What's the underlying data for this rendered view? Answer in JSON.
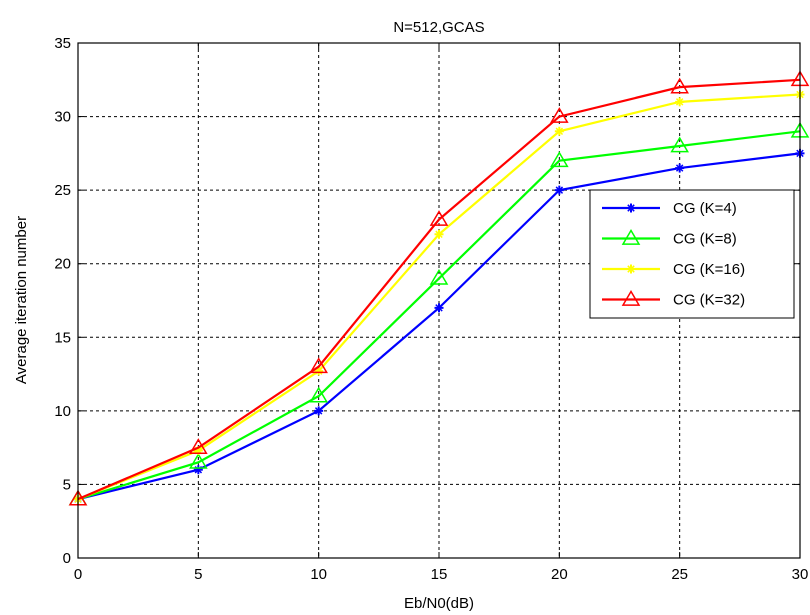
{
  "chart_data": {
    "type": "line",
    "title": "N=512,GCAS",
    "xlabel": "Eb/N0(dB)",
    "ylabel": "Average iteration number",
    "x": [
      0,
      5,
      10,
      15,
      20,
      25,
      30
    ],
    "xlim": [
      0,
      30
    ],
    "ylim": [
      0,
      35
    ],
    "xticks": [
      0,
      5,
      10,
      15,
      20,
      25,
      30
    ],
    "yticks": [
      0,
      5,
      10,
      15,
      20,
      25,
      30,
      35
    ],
    "grid": true,
    "legend_position": "right",
    "series": [
      {
        "name": "CG (K=4)",
        "color": "#0000ff",
        "marker": "star",
        "values": [
          4,
          6,
          10,
          17,
          25,
          26.5,
          27.5
        ]
      },
      {
        "name": "CG (K=8)",
        "color": "#00ff00",
        "marker": "triangle",
        "values": [
          4,
          6.5,
          11,
          19,
          27,
          28,
          29
        ]
      },
      {
        "name": "CG (K=16)",
        "color": "#ffff00",
        "marker": "star",
        "values": [
          4,
          7.3,
          12.7,
          22,
          29,
          31,
          31.5
        ]
      },
      {
        "name": "CG (K=32)",
        "color": "#ff0000",
        "marker": "triangle",
        "values": [
          4,
          7.5,
          13,
          23,
          30,
          32,
          32.5
        ]
      }
    ]
  }
}
